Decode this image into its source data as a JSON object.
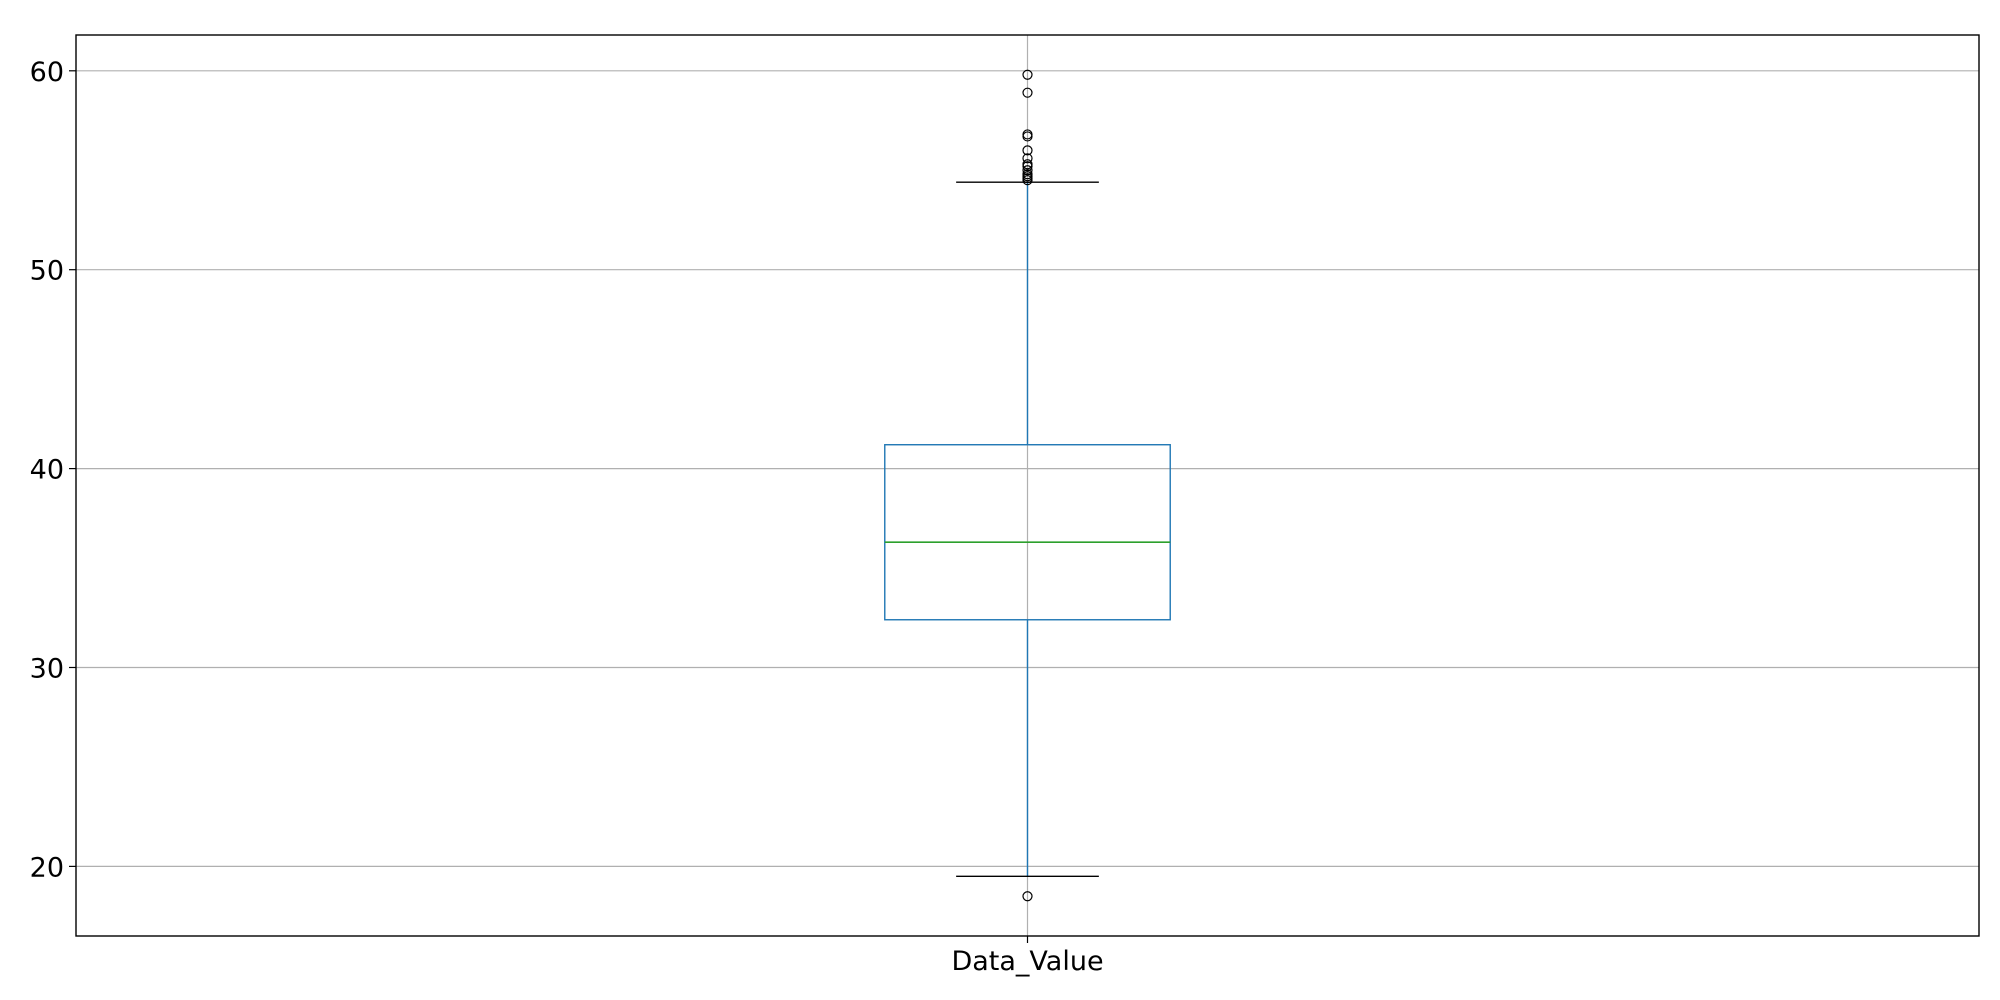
{
  "chart_data": {
    "type": "box",
    "categories": [
      "Data_Value"
    ],
    "boxes": [
      {
        "category": "Data_Value",
        "whisker_low": 19.5,
        "q1": 32.4,
        "median": 36.3,
        "q3": 41.2,
        "whisker_high": 54.4,
        "outliers": [
          18.5,
          54.5,
          54.6,
          54.7,
          54.8,
          55.0,
          55.2,
          55.3,
          55.6,
          56.0,
          56.7,
          56.8,
          58.9,
          59.8
        ]
      }
    ],
    "y_ticks": [
      "20",
      "30",
      "40",
      "50",
      "60"
    ],
    "ylim": [
      16.5,
      61.8
    ],
    "grid": true,
    "colors": {
      "box": "#1f77b4",
      "median": "#2ca02c",
      "cap": "#000000",
      "outlier": "#000000",
      "grid": "#b0b0b0"
    }
  }
}
